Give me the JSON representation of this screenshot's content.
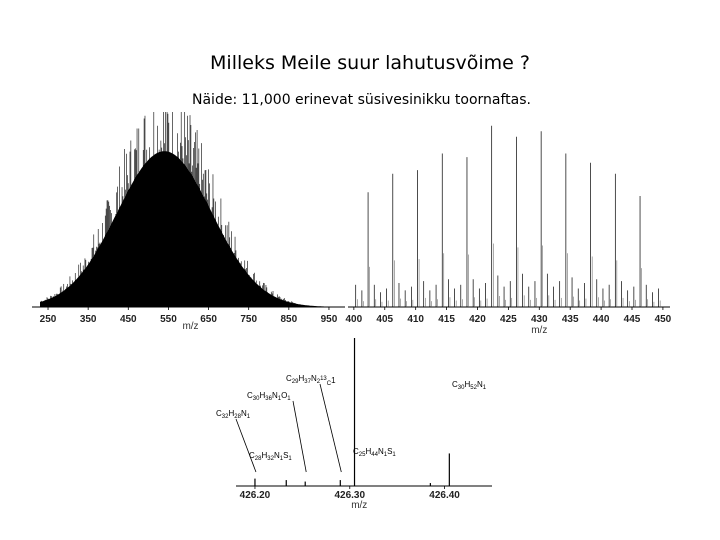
{
  "slide": {
    "title": "Milleks Meile suur lahutusvõime ?",
    "subtitle": "Näide: 11,000 erinevat süsivesinikku toornaftas."
  },
  "chart_data": [
    {
      "type": "bar",
      "xlabel": "m/z",
      "xlim": [
        230,
        985
      ],
      "x_ticks": [
        250,
        350,
        450,
        550,
        650,
        750,
        850,
        950
      ],
      "tick_labels": [
        "250",
        "350",
        "450",
        "550",
        "650",
        "750",
        "850",
        "950"
      ],
      "distribution": {
        "center_mz": 540,
        "width_mz": 118,
        "max_rel_intensity": 0.82
      }
    },
    {
      "type": "bar",
      "xlabel": "m/z",
      "xlim": [
        399.7,
        450.5
      ],
      "x_ticks": [
        400,
        405,
        410,
        415,
        420,
        425,
        430,
        435,
        440,
        445,
        450
      ],
      "tick_labels": [
        "400",
        "405",
        "410",
        "415",
        "420",
        "425",
        "430",
        "435",
        "440",
        "445",
        "450"
      ],
      "peaks": [
        {
          "x": 400.3,
          "rel": 0.12
        },
        {
          "x": 401.3,
          "rel": 0.09
        },
        {
          "x": 402.3,
          "rel": 0.62
        },
        {
          "x": 403.3,
          "rel": 0.12
        },
        {
          "x": 404.3,
          "rel": 0.08
        },
        {
          "x": 405.3,
          "rel": 0.1
        },
        {
          "x": 406.3,
          "rel": 0.72
        },
        {
          "x": 407.3,
          "rel": 0.13
        },
        {
          "x": 408.3,
          "rel": 0.09
        },
        {
          "x": 409.3,
          "rel": 0.11
        },
        {
          "x": 410.3,
          "rel": 0.74
        },
        {
          "x": 411.3,
          "rel": 0.14
        },
        {
          "x": 412.3,
          "rel": 0.09
        },
        {
          "x": 413.3,
          "rel": 0.12
        },
        {
          "x": 414.3,
          "rel": 0.83
        },
        {
          "x": 415.3,
          "rel": 0.15
        },
        {
          "x": 416.3,
          "rel": 0.1
        },
        {
          "x": 417.3,
          "rel": 0.12
        },
        {
          "x": 418.3,
          "rel": 0.81
        },
        {
          "x": 419.3,
          "rel": 0.15
        },
        {
          "x": 420.3,
          "rel": 0.1
        },
        {
          "x": 421.3,
          "rel": 0.13
        },
        {
          "x": 422.3,
          "rel": 0.98
        },
        {
          "x": 423.3,
          "rel": 0.17
        },
        {
          "x": 424.3,
          "rel": 0.11
        },
        {
          "x": 425.3,
          "rel": 0.14
        },
        {
          "x": 426.3,
          "rel": 0.92
        },
        {
          "x": 427.3,
          "rel": 0.18
        },
        {
          "x": 428.3,
          "rel": 0.11
        },
        {
          "x": 429.3,
          "rel": 0.14
        },
        {
          "x": 430.3,
          "rel": 0.95
        },
        {
          "x": 431.3,
          "rel": 0.18
        },
        {
          "x": 432.3,
          "rel": 0.11
        },
        {
          "x": 433.3,
          "rel": 0.14
        },
        {
          "x": 434.3,
          "rel": 0.83
        },
        {
          "x": 435.3,
          "rel": 0.16
        },
        {
          "x": 436.3,
          "rel": 0.1
        },
        {
          "x": 437.3,
          "rel": 0.13
        },
        {
          "x": 438.3,
          "rel": 0.78
        },
        {
          "x": 439.3,
          "rel": 0.15
        },
        {
          "x": 440.3,
          "rel": 0.1
        },
        {
          "x": 441.3,
          "rel": 0.12
        },
        {
          "x": 442.3,
          "rel": 0.72
        },
        {
          "x": 443.3,
          "rel": 0.14
        },
        {
          "x": 444.3,
          "rel": 0.09
        },
        {
          "x": 445.3,
          "rel": 0.11
        },
        {
          "x": 446.3,
          "rel": 0.6
        },
        {
          "x": 447.3,
          "rel": 0.12
        },
        {
          "x": 448.3,
          "rel": 0.08
        },
        {
          "x": 449.3,
          "rel": 0.1
        }
      ]
    },
    {
      "type": "bar",
      "xlabel": "m/z",
      "xlim": [
        426.18,
        426.45
      ],
      "x_ticks": [
        426.2,
        426.3,
        426.4
      ],
      "tick_labels": [
        "426.20",
        "426.30",
        "426.40"
      ],
      "peaks": [
        {
          "x": 426.2,
          "rel": 0.05
        },
        {
          "x": 426.233,
          "rel": 0.04
        },
        {
          "x": 426.253,
          "rel": 0.03
        },
        {
          "x": 426.29,
          "rel": 0.04
        },
        {
          "x": 426.305,
          "rel": 1.0
        },
        {
          "x": 426.385,
          "rel": 0.02
        },
        {
          "x": 426.405,
          "rel": 0.22
        }
      ],
      "annotations": [
        {
          "formula": [
            "C",
            "29",
            "H",
            "37",
            "N",
            "2",
            "13",
            "C",
            "1"
          ],
          "superscript_index": 6,
          "x": 426.29
        },
        {
          "formula": [
            "C",
            "30",
            "H",
            "36",
            "N",
            "1",
            "O",
            "1"
          ],
          "x": 426.253
        },
        {
          "formula": [
            "C",
            "32",
            "H",
            "28",
            "N",
            "1"
          ],
          "x": 426.2
        },
        {
          "formula": [
            "C",
            "28",
            "H",
            "32",
            "N",
            "1",
            "S",
            "1"
          ],
          "x": 426.233
        },
        {
          "formula": [
            "C",
            "25",
            "H",
            "44",
            "N",
            "1",
            "S",
            "1"
          ],
          "x": 426.305
        },
        {
          "formula": [
            "C",
            "30",
            "H",
            "52",
            "N",
            "1"
          ],
          "x": 426.405
        }
      ]
    }
  ]
}
